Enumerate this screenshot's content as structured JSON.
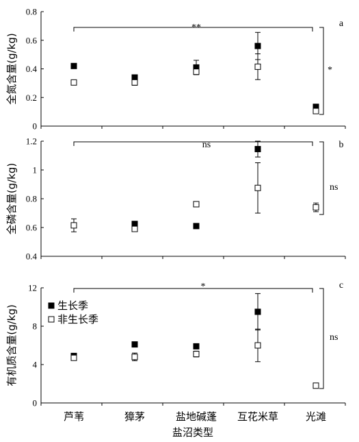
{
  "chart_data": [
    {
      "type": "scatter",
      "panel_label": "a",
      "ylabel": "全氮含量(g/kg)",
      "ylim": [
        0,
        0.8
      ],
      "yticks": [
        "0",
        "0.2",
        "0.4",
        "0.6",
        "0.8"
      ],
      "ytick_values": [
        0,
        0.2,
        0.4,
        0.6,
        0.8
      ],
      "categories": [
        "芦苇",
        "獐茅",
        "盐地碱蓬",
        "互花米草",
        "光滩"
      ],
      "series": [
        {
          "name": "生长季",
          "values": [
            0.42,
            0.34,
            0.41,
            0.56,
            0.135
          ],
          "errors": [
            0.012,
            0.015,
            0.05,
            0.095,
            0.012
          ]
        },
        {
          "name": "非生长季",
          "values": [
            0.305,
            0.305,
            0.38,
            0.415,
            0.105
          ],
          "errors": [
            0.01,
            0.02,
            0.02,
            0.09,
            0.01
          ]
        }
      ],
      "annotations": [
        {
          "text": "**",
          "type": "bracket-horizontal"
        },
        {
          "text": "*",
          "type": "bracket-vertical"
        }
      ]
    },
    {
      "type": "scatter",
      "panel_label": "b",
      "ylabel": "全磷含量(g/kg)",
      "ylim": [
        0.4,
        1.2
      ],
      "yticks": [
        "0.4",
        "0.6",
        "0.8",
        "1",
        "1.2"
      ],
      "ytick_values": [
        0.4,
        0.6,
        0.8,
        1.0,
        1.2
      ],
      "categories": [
        "芦苇",
        "獐茅",
        "盐地碱蓬",
        "互花米草",
        "光滩"
      ],
      "series": [
        {
          "name": "生长季",
          "values": [
            null,
            0.625,
            0.61,
            1.145,
            null
          ],
          "errors": [
            null,
            0.012,
            0.012,
            0.055,
            null
          ]
        },
        {
          "name": "非生长季",
          "values": [
            0.615,
            0.59,
            0.762,
            0.875,
            0.74
          ],
          "errors": [
            0.045,
            0.012,
            0.015,
            0.175,
            0.03
          ]
        }
      ],
      "annotations": [
        {
          "text": "ns",
          "type": "bracket-horizontal"
        },
        {
          "text": "ns",
          "type": "bracket-vertical"
        }
      ]
    },
    {
      "type": "scatter",
      "panel_label": "c",
      "ylabel": "有机质含量(g/kg)",
      "xlabel": "盐沼类型",
      "ylim": [
        0,
        12
      ],
      "yticks": [
        "0",
        "4",
        "8",
        "12"
      ],
      "ytick_values": [
        0,
        4,
        8,
        12
      ],
      "categories": [
        "芦苇",
        "獐茅",
        "盐地碱蓬",
        "互花米草",
        "光滩"
      ],
      "series": [
        {
          "name": "生长季",
          "values": [
            4.9,
            6.1,
            5.9,
            9.5,
            null
          ],
          "errors": [
            0.15,
            0.15,
            0.2,
            1.9,
            null
          ]
        },
        {
          "name": "非生长季",
          "values": [
            4.7,
            4.8,
            5.1,
            6.0,
            1.8
          ],
          "errors": [
            0.2,
            0.4,
            0.3,
            1.7,
            0.1
          ]
        }
      ],
      "legend": {
        "placement": "top-left",
        "entries": [
          "生长季",
          "非生长季"
        ]
      },
      "annotations": [
        {
          "text": "*",
          "type": "bracket-horizontal"
        },
        {
          "text": "ns",
          "type": "bracket-vertical"
        }
      ]
    }
  ]
}
